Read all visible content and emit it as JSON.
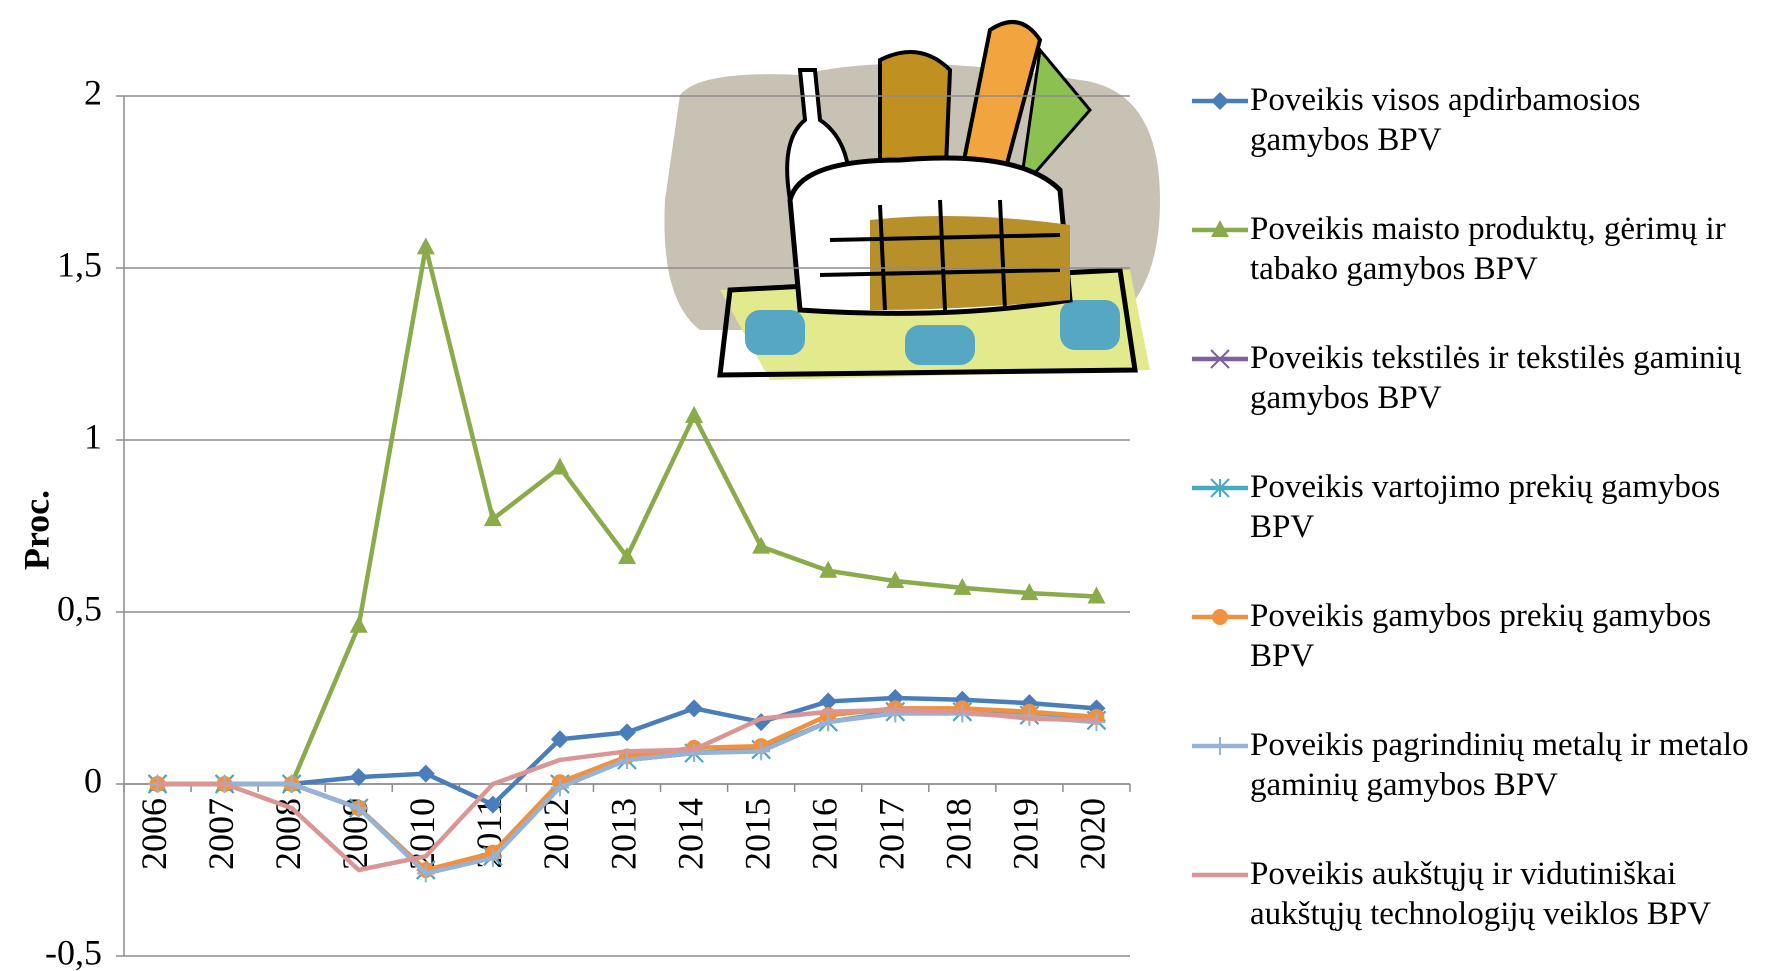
{
  "chart_data": {
    "type": "line",
    "y_label": "Proc.",
    "categories": [
      "2006",
      "2007",
      "2008",
      "2009",
      "2010",
      "2011",
      "2012",
      "2013",
      "2014",
      "2015",
      "2016",
      "2017",
      "2018",
      "2019",
      "2020"
    ],
    "ylim": [
      -0.5,
      2
    ],
    "yticks": [
      {
        "value": -0.5,
        "label": "-0,5"
      },
      0,
      {
        "value": 0.5,
        "label": "0,5"
      },
      1,
      {
        "value": 1.5,
        "label": "1,5"
      },
      2
    ],
    "grid": true,
    "legend": "right",
    "series": [
      {
        "name": "Poveikis visos apdirbamosios gamybos BPV",
        "color": "#4a7ebb",
        "marker": "diamond",
        "values": [
          0,
          0,
          0,
          0.02,
          0.03,
          -0.06,
          0.13,
          0.15,
          0.22,
          0.18,
          0.24,
          0.25,
          0.245,
          0.235,
          0.22
        ]
      },
      {
        "name": "Poveikis maisto produktų, gėrimų ir tabako gamybos BPV",
        "color": "#8aab4a",
        "marker": "triangle",
        "values": [
          0,
          0,
          0,
          0.46,
          1.56,
          0.77,
          0.92,
          0.66,
          1.07,
          0.69,
          0.62,
          0.59,
          0.57,
          0.555,
          0.545
        ]
      },
      {
        "name": "Poveikis tekstilės ir tekstilės gaminių gamybos BPV",
        "color": "#7d60a0",
        "marker": "x",
        "values": [
          0,
          0,
          0,
          -0.07,
          -0.25,
          -0.21,
          0,
          0.07,
          0.09,
          0.1,
          0.18,
          0.21,
          0.21,
          0.2,
          0.185
        ]
      },
      {
        "name": "Poveikis vartojimo prekių gamybos BPV",
        "color": "#46aac5",
        "marker": "star",
        "values": [
          0,
          0,
          0,
          -0.07,
          -0.25,
          -0.21,
          0,
          0.07,
          0.09,
          0.1,
          0.18,
          0.21,
          0.21,
          0.2,
          0.185
        ]
      },
      {
        "name": "Poveikis gamybos prekių gamybos BPV",
        "color": "#f0913f",
        "marker": "circle",
        "values": [
          0,
          0,
          0,
          -0.07,
          -0.25,
          -0.2,
          0.005,
          0.08,
          0.105,
          0.11,
          0.2,
          0.22,
          0.22,
          0.21,
          0.195
        ]
      },
      {
        "name": "Poveikis pagrindinių metalų ir metalo gaminių gamybos BPV",
        "color": "#95b3d7",
        "marker": "plus",
        "values": [
          0,
          0,
          0,
          -0.07,
          -0.26,
          -0.215,
          -0.01,
          0.07,
          0.09,
          0.095,
          0.18,
          0.205,
          0.205,
          0.195,
          0.18
        ]
      },
      {
        "name": "Poveikis aukštųjų ir vidutiniškai aukštųjų technologijų veiklos BPV",
        "color": "#d99694",
        "marker": "none",
        "values": [
          0,
          0,
          -0.07,
          -0.25,
          -0.21,
          0,
          0.07,
          0.095,
          0.1,
          0.19,
          0.21,
          0.215,
          0.21,
          0.19,
          0.185
        ]
      }
    ]
  }
}
